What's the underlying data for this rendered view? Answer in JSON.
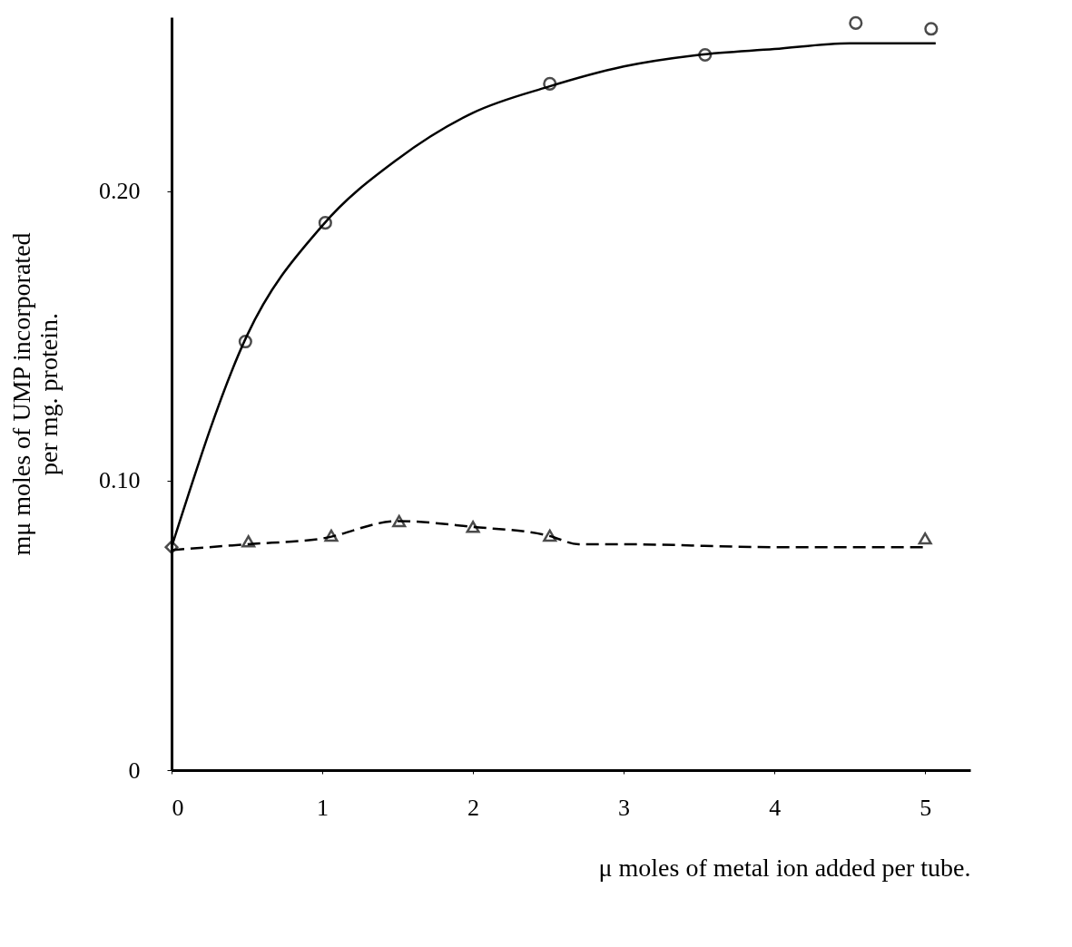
{
  "chart_data": {
    "type": "line",
    "xlabel": "μ moles of metal ion added per tube.",
    "ylabel": "mμ moles of UMP incorporated\nper mg. protein.",
    "xlim": [
      0,
      5.3
    ],
    "xticks": [
      0,
      1,
      2,
      3,
      4,
      5
    ],
    "ylim": [
      0,
      0.26
    ],
    "yticks": [
      0,
      {
        "value": 0.1,
        "label": "0.10"
      },
      {
        "value": 0.2,
        "label": "0.20"
      }
    ],
    "grid": false,
    "series": [
      {
        "color": "#000000",
        "line_style": "solid",
        "marker": "none",
        "x": [
          0,
          0.5,
          1,
          1.5,
          2,
          2.5,
          3,
          3.5,
          4,
          4.5,
          5.07
        ],
        "values": [
          0.077,
          0.15,
          0.188,
          0.211,
          0.227,
          0.236,
          0.243,
          0.247,
          0.249,
          0.251,
          0.251
        ]
      },
      {
        "type": "scatter",
        "color": "#000000",
        "marker": "circle",
        "x": [
          0.49,
          1.02,
          2.51,
          3.54,
          4.54,
          5.04
        ],
        "values": [
          0.148,
          0.189,
          0.237,
          0.247,
          0.258,
          0.256
        ]
      },
      {
        "color": "#000000",
        "line_style": "dashed",
        "marker": "none",
        "x": [
          0,
          0.5,
          1,
          1.5,
          2,
          2.5,
          2.7,
          3,
          4,
          5
        ],
        "values": [
          0.076,
          0.078,
          0.08,
          0.086,
          0.084,
          0.081,
          0.078,
          0.078,
          0.077,
          0.077
        ]
      },
      {
        "type": "scatter",
        "color": "#000000",
        "marker": "triangle",
        "x": [
          0.51,
          1.06,
          1.51,
          2.0,
          2.51,
          5.0
        ],
        "values": [
          0.079,
          0.081,
          0.086,
          0.084,
          0.081,
          0.08
        ]
      },
      {
        "type": "scatter",
        "color": "#000000",
        "marker": "diamond",
        "x": [
          0
        ],
        "values": [
          0.077
        ]
      }
    ]
  }
}
